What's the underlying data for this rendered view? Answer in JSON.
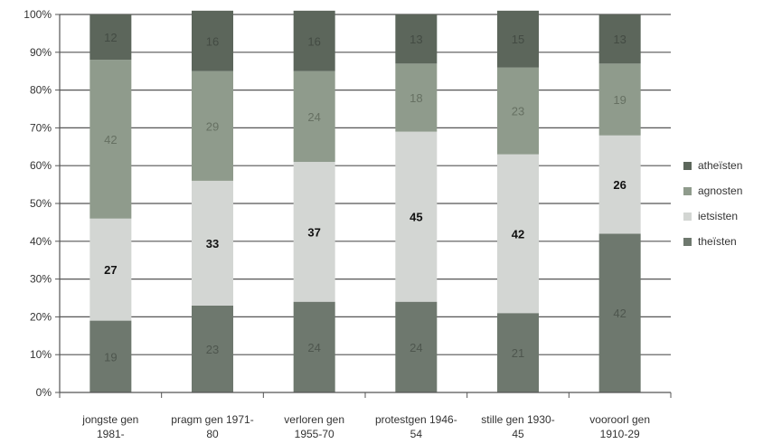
{
  "chart_data": {
    "type": "bar",
    "stacked": true,
    "percent": true,
    "categories": [
      [
        "jongste gen",
        "1981-"
      ],
      [
        "pragm gen 1971-",
        "80"
      ],
      [
        "verloren gen",
        "1955-70"
      ],
      [
        "protestgen 1946-",
        "54"
      ],
      [
        "stille gen 1930-",
        "45"
      ],
      [
        "vooroorl gen",
        "1910-29"
      ]
    ],
    "series": [
      {
        "name": "theïsten",
        "values": [
          19,
          23,
          24,
          24,
          21,
          42
        ],
        "color": "#6e786e",
        "label_color": "#4e564e"
      },
      {
        "name": "ietsisten",
        "values": [
          27,
          33,
          37,
          45,
          42,
          26
        ],
        "color": "#d3d6d3",
        "label_color": "#111111"
      },
      {
        "name": "agnosten",
        "values": [
          42,
          29,
          24,
          18,
          23,
          19
        ],
        "color": "#8f9b8c",
        "label_color": "#667062"
      },
      {
        "name": "atheïsten",
        "values": [
          12,
          16,
          16,
          13,
          15,
          13
        ],
        "color": "#5c665b",
        "label_color": "#434b43"
      }
    ],
    "legend_order": [
      "atheïsten",
      "agnosten",
      "ietsisten",
      "theïsten"
    ],
    "ylim": [
      0,
      100
    ],
    "yticks": [
      "0%",
      "10%",
      "20%",
      "30%",
      "40%",
      "50%",
      "60%",
      "70%",
      "80%",
      "90%",
      "100%"
    ],
    "grid": true,
    "legend_position": "right"
  }
}
